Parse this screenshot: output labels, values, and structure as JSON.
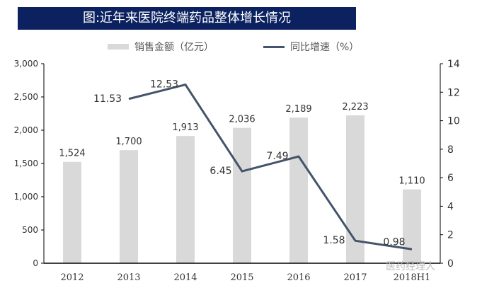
{
  "title": "图:近年来医院终端药品整体增长情况",
  "watermark": "医药经理人",
  "chart_data": {
    "type": "bar+line",
    "categories": [
      "2012",
      "2013",
      "2014",
      "2015",
      "2016",
      "2017",
      "2018H1"
    ],
    "series": [
      {
        "name": "销售金额（亿元）",
        "type": "bar",
        "axis": "left",
        "color": "#d9d9d9",
        "values": [
          1524,
          1700,
          1913,
          2036,
          2189,
          2223,
          1110
        ],
        "labels": [
          "1,524",
          "1,700",
          "1,913",
          "2,036",
          "2,189",
          "2,223",
          "1,110"
        ]
      },
      {
        "name": "同比增速（%）",
        "type": "line",
        "axis": "right",
        "color": "#44546a",
        "values": [
          null,
          11.53,
          12.53,
          6.45,
          7.49,
          1.58,
          0.98
        ],
        "labels": [
          "",
          "11.53",
          "12.53",
          "6.45",
          "7.49",
          "1.58",
          "0.98"
        ]
      }
    ],
    "left_axis": {
      "ylim": [
        0,
        3000
      ],
      "ticks": [
        "0",
        "500",
        "1,000",
        "1,500",
        "2,000",
        "2,500",
        "3,000"
      ]
    },
    "right_axis": {
      "ylim": [
        0,
        14
      ],
      "ticks": [
        "0",
        "2",
        "4",
        "6",
        "8",
        "10",
        "12",
        "14"
      ]
    },
    "legend": "top",
    "grid": false
  }
}
